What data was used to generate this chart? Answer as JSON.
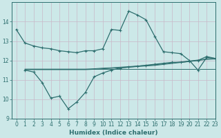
{
  "xlabel": "Humidex (Indice chaleur)",
  "ylabel": "",
  "bg_color": "#cce8e8",
  "line_color": "#2d6e6e",
  "grid_color": "#b8d8d8",
  "ylim": [
    9,
    15
  ],
  "xlim": [
    -0.5,
    23
  ],
  "yticks": [
    9,
    10,
    11,
    12,
    13,
    14
  ],
  "xticks": [
    0,
    1,
    2,
    3,
    4,
    5,
    6,
    7,
    8,
    9,
    10,
    11,
    12,
    13,
    14,
    15,
    16,
    17,
    18,
    19,
    20,
    21,
    22,
    23
  ],
  "line_max": {
    "x": [
      0,
      1,
      2,
      3,
      4,
      5,
      6,
      7,
      8,
      9,
      10,
      11,
      12,
      13,
      14,
      15,
      16,
      17,
      18,
      19,
      20,
      21,
      22,
      23
    ],
    "y": [
      13.6,
      12.9,
      12.75,
      12.65,
      12.6,
      12.5,
      12.45,
      12.4,
      12.5,
      12.5,
      12.6,
      13.6,
      13.55,
      14.55,
      14.35,
      14.1,
      13.25,
      12.45,
      12.4,
      12.35,
      12.0,
      11.5,
      12.15,
      12.1
    ]
  },
  "line_min": {
    "x": [
      1,
      2,
      3,
      4,
      5,
      6,
      7,
      8,
      9,
      10,
      11,
      12,
      13,
      14,
      15,
      16,
      17,
      18,
      19,
      20,
      21,
      22,
      23
    ],
    "y": [
      11.5,
      11.4,
      10.85,
      10.05,
      10.15,
      9.5,
      9.85,
      10.35,
      11.15,
      11.35,
      11.5,
      11.6,
      11.65,
      11.7,
      11.75,
      11.8,
      11.85,
      11.9,
      11.9,
      11.95,
      12.0,
      12.2,
      12.1
    ]
  },
  "line_avg1": {
    "x": [
      1,
      2,
      3,
      4,
      5,
      6,
      7,
      8,
      9,
      10,
      11,
      12,
      13,
      14,
      15,
      16,
      17,
      18,
      19,
      20,
      21,
      22,
      23
    ],
    "y": [
      11.55,
      11.55,
      11.55,
      11.55,
      11.55,
      11.55,
      11.55,
      11.55,
      11.57,
      11.6,
      11.62,
      11.65,
      11.68,
      11.71,
      11.74,
      11.77,
      11.82,
      11.87,
      11.92,
      11.97,
      12.02,
      12.08,
      12.1
    ]
  },
  "line_avg2": {
    "x": [
      1,
      2,
      3,
      4,
      5,
      6,
      7,
      8,
      9,
      10,
      11,
      12,
      13,
      14,
      15,
      16,
      17,
      18,
      19,
      20,
      21,
      22,
      23
    ],
    "y": [
      11.52,
      11.52,
      11.52,
      11.52,
      11.52,
      11.52,
      11.52,
      11.52,
      11.54,
      11.57,
      11.59,
      11.62,
      11.65,
      11.68,
      11.71,
      11.74,
      11.79,
      11.84,
      11.89,
      11.94,
      11.99,
      12.05,
      12.07
    ]
  },
  "line_flat": {
    "x": [
      1,
      23
    ],
    "y": [
      11.55,
      11.55
    ]
  }
}
